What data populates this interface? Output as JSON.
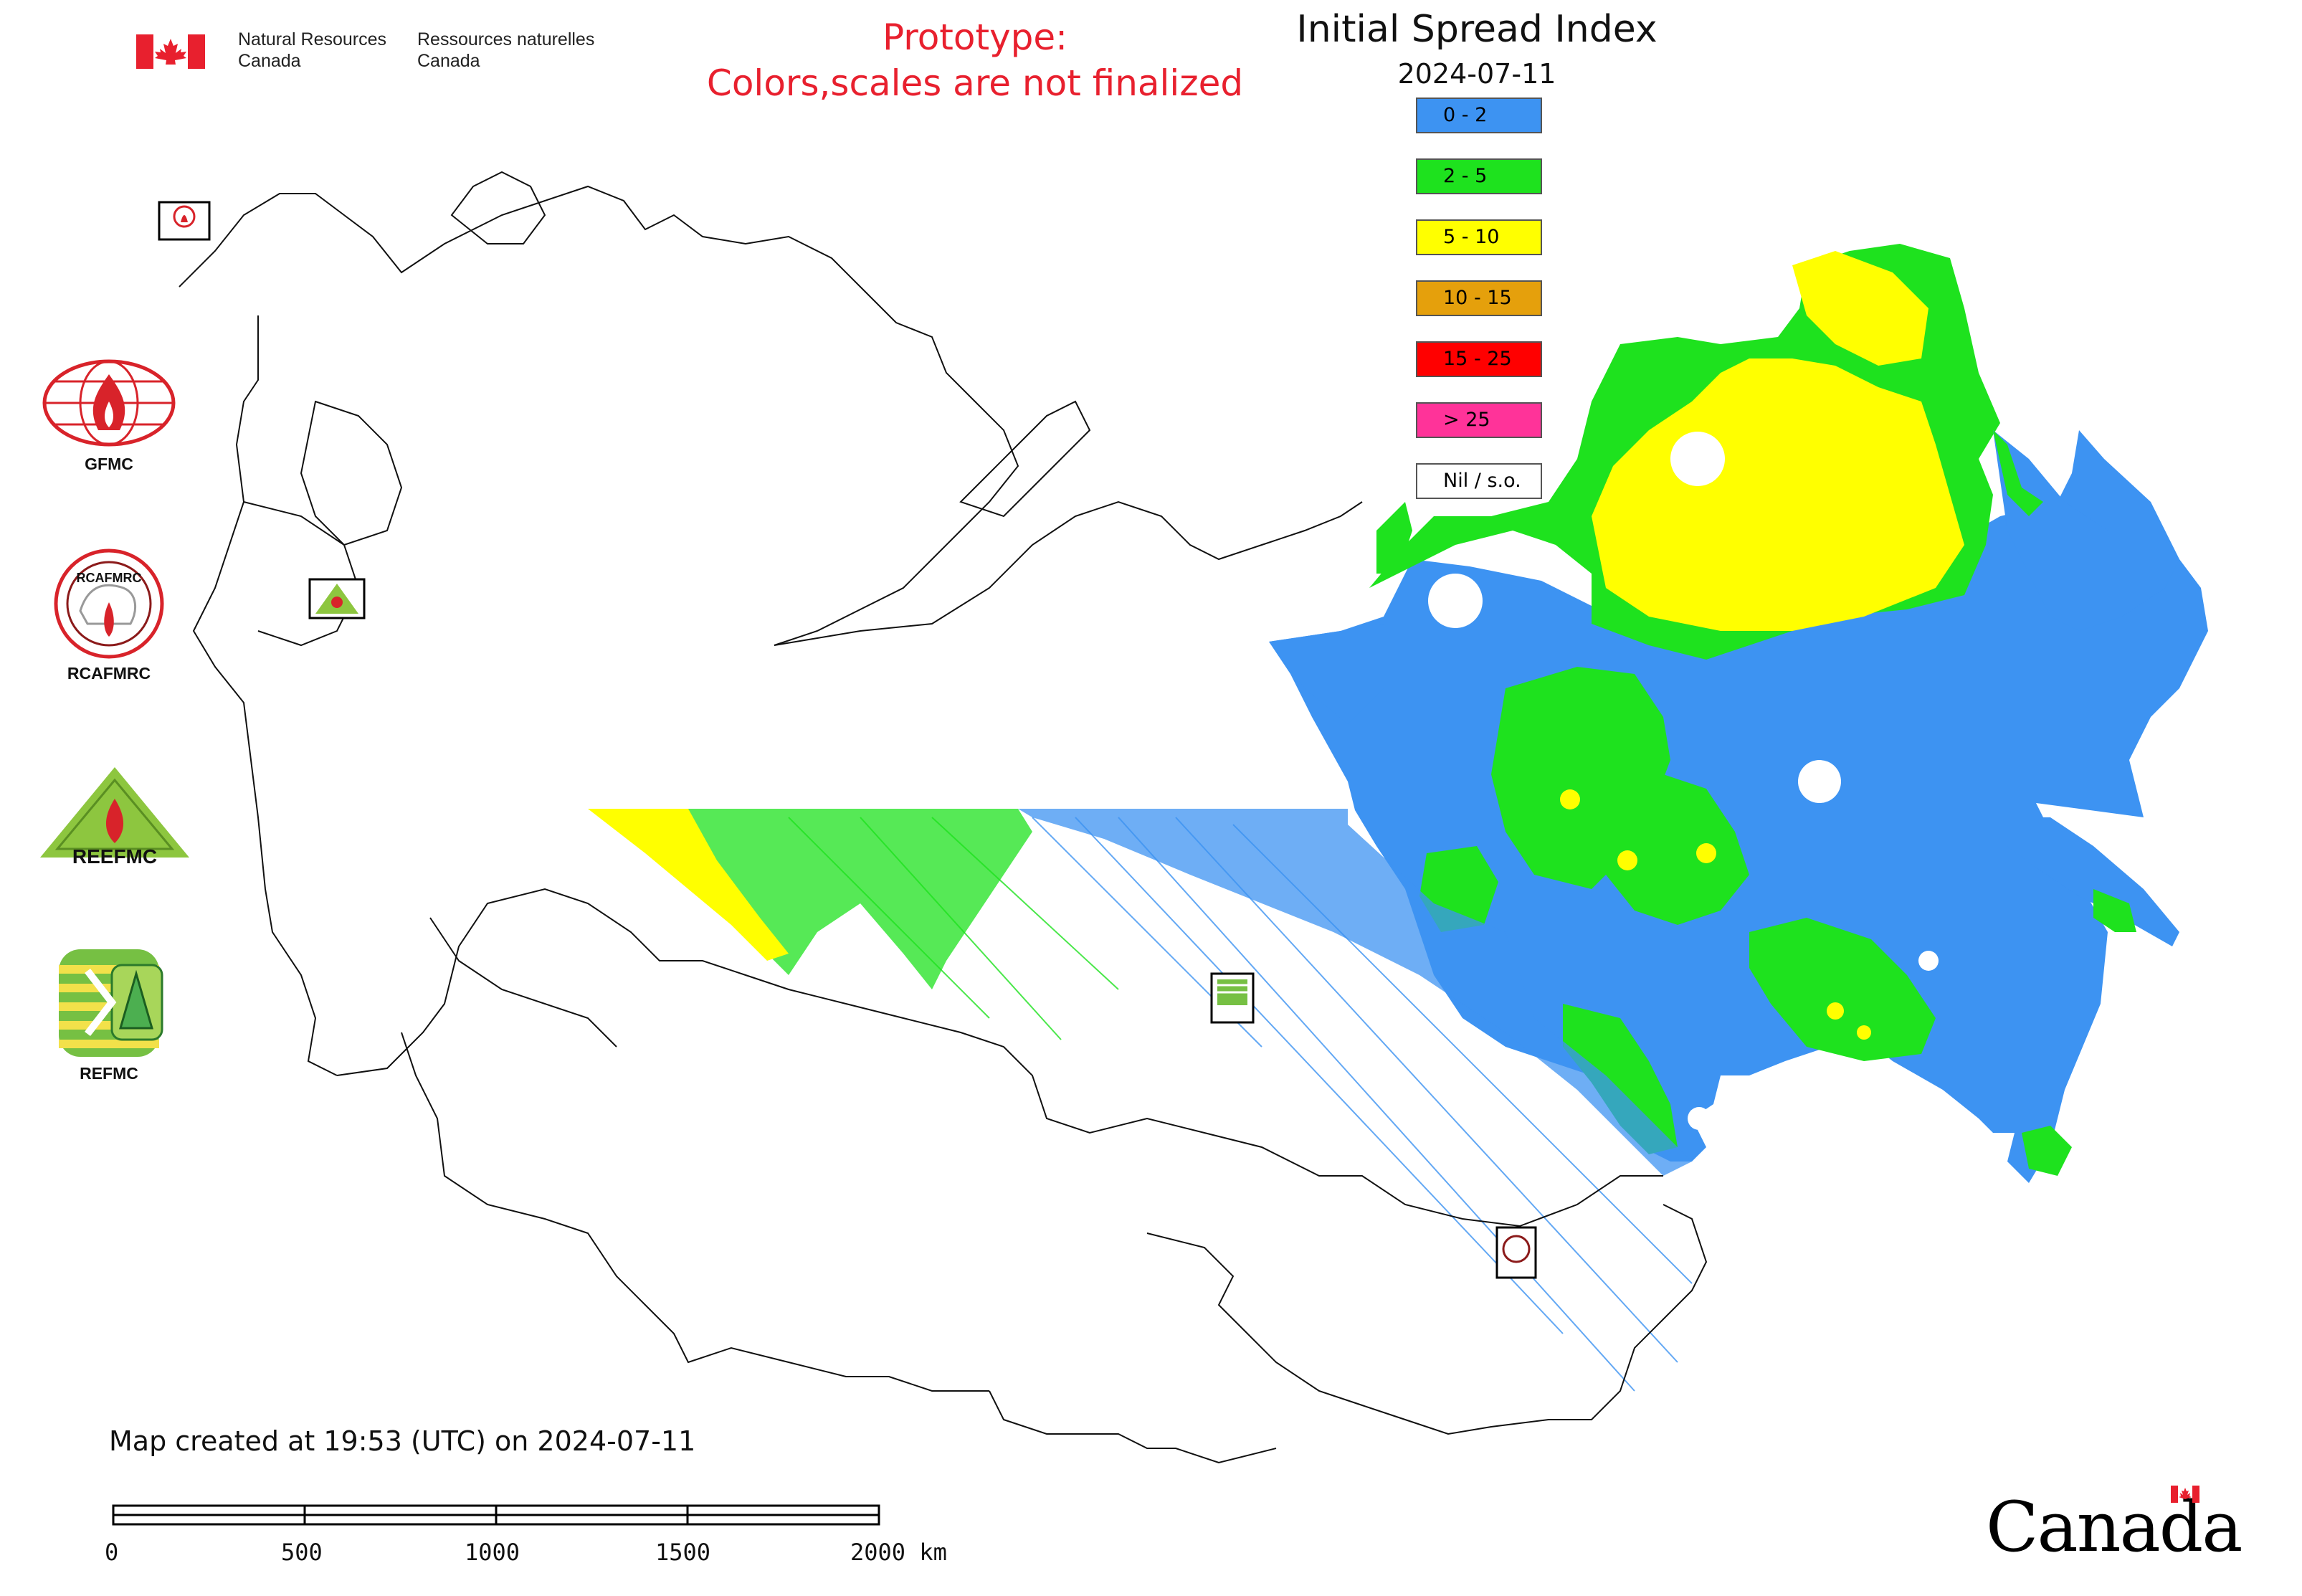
{
  "header": {
    "dept_en_line1": "Natural Resources",
    "dept_en_line2": "Canada",
    "dept_fr_line1": "Ressources naturelles",
    "dept_fr_line2": "Canada",
    "notice_line1": "Prototype:",
    "notice_line2": "Colors,scales are not finalized"
  },
  "map": {
    "title": "Initial Spread Index",
    "date": "2024-07-11",
    "legend": [
      {
        "label": "0 - 2",
        "color": "#3d93f2"
      },
      {
        "label": "2 - 5",
        "color": "#1ee21e"
      },
      {
        "label": "5 - 10",
        "color": "#ffff00"
      },
      {
        "label": "10 - 15",
        "color": "#e5a00c"
      },
      {
        "label": "15 - 25",
        "color": "#ff0000"
      },
      {
        "label": "> 25",
        "color": "#ff3399"
      },
      {
        "label": "Nil / s.o.",
        "color": "#ffffff"
      }
    ],
    "index_colors": {
      "low": "#3d93f2",
      "moderate": "#1ee21e",
      "high": "#ffff00"
    }
  },
  "agencies": [
    {
      "caption": "GFMC",
      "icon": "gfmc-logo-icon"
    },
    {
      "caption": "RCAFMRC",
      "icon": "rcafmrc-logo-icon"
    },
    {
      "caption": "",
      "icon": "reefmc-logo-icon"
    },
    {
      "caption": "REFMC",
      "icon": "refmc-logo-icon"
    }
  ],
  "footer": {
    "created": "Map created at 19:53 (UTC) on 2024-07-11",
    "wordmark": "Canada",
    "scale_ticks": [
      "0",
      "500",
      "1000",
      "1500",
      "2000 km"
    ]
  }
}
